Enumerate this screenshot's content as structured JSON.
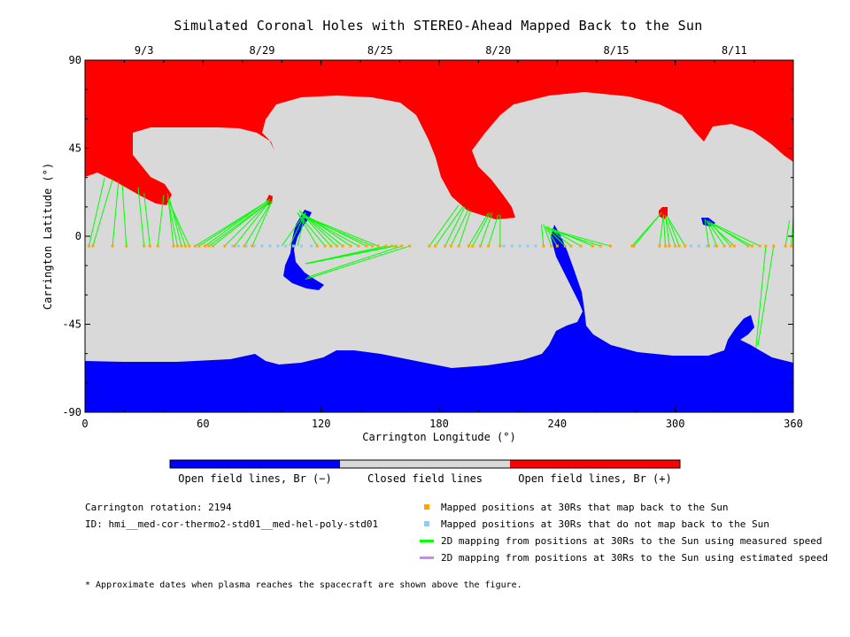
{
  "chart_data": {
    "type": "map",
    "title": "Simulated Coronal Holes with STEREO-Ahead Mapped Back to the Sun",
    "xlabel": "Carrington Longitude (°)",
    "ylabel": "Carrington Latitude (°)",
    "xlim": [
      0,
      360
    ],
    "ylim": [
      -90,
      90
    ],
    "x_ticks": [
      "0",
      "60",
      "120",
      "180",
      "240",
      "300",
      "360"
    ],
    "y_ticks": [
      "90",
      "45",
      "0",
      "-45",
      "-90"
    ],
    "top_dates": [
      {
        "label": "9/3",
        "lon": 30
      },
      {
        "label": "8/29",
        "lon": 90
      },
      {
        "label": "8/25",
        "lon": 150
      },
      {
        "label": "8/20",
        "lon": 210
      },
      {
        "label": "8/15",
        "lon": 270
      },
      {
        "label": "8/11",
        "lon": 330
      }
    ],
    "colorbar": [
      {
        "label": "Open field lines, Br (−)",
        "color": "#0000ff"
      },
      {
        "label": "Closed field lines",
        "color": "#d9d9d9"
      },
      {
        "label": "Open field lines, Br (+)",
        "color": "#ff0000"
      }
    ],
    "mapped_orange_lon": [
      2,
      4,
      14,
      21,
      30,
      33,
      37,
      45,
      47,
      49,
      51,
      53,
      56,
      58,
      61,
      63,
      65,
      71,
      76,
      81,
      85,
      118,
      122,
      125,
      128,
      131,
      135,
      139,
      143,
      146,
      149,
      153,
      156,
      158,
      161,
      165,
      175,
      178,
      183,
      186,
      190,
      195,
      197,
      201,
      205,
      211,
      233,
      237,
      240,
      244,
      247,
      252,
      258,
      262,
      267,
      278,
      279,
      292,
      295,
      297,
      300,
      302,
      305,
      317,
      321,
      325,
      328,
      330,
      337,
      339,
      343,
      346,
      350,
      356,
      359
    ],
    "mapped_blue_lon": [
      75,
      78,
      82,
      86,
      90,
      94,
      98,
      102,
      106,
      110,
      115,
      213,
      217,
      221,
      225,
      229,
      308,
      312,
      316,
      320
    ],
    "trace_lat": -5
  },
  "info": {
    "rotation": "Carrington rotation: 2194",
    "id": "ID: hmi__med-cor-thermo2-std01__med-hel-poly-std01"
  },
  "legend": [
    {
      "text": "Mapped positions at 30Rs that map back to the Sun",
      "color": "#ffa500",
      "kind": "square"
    },
    {
      "text": "Mapped positions at 30Rs that do not map back to the Sun",
      "color": "#87cefa",
      "kind": "square"
    },
    {
      "text": "2D mapping from positions at 30Rs to the Sun using measured speed",
      "color": "#00ff00",
      "kind": "line"
    },
    {
      "text": "2D mapping from positions at 30Rs to the Sun using estimated speed",
      "color": "#cc88ee",
      "kind": "line"
    }
  ],
  "footnote": "* Approximate dates when plasma reaches the spacecraft are shown above the figure.",
  "colors": {
    "closed": "#d9d9d9",
    "open_neg": "#0000ff",
    "open_pos": "#ff0000",
    "trace_line": "#00ff00"
  }
}
